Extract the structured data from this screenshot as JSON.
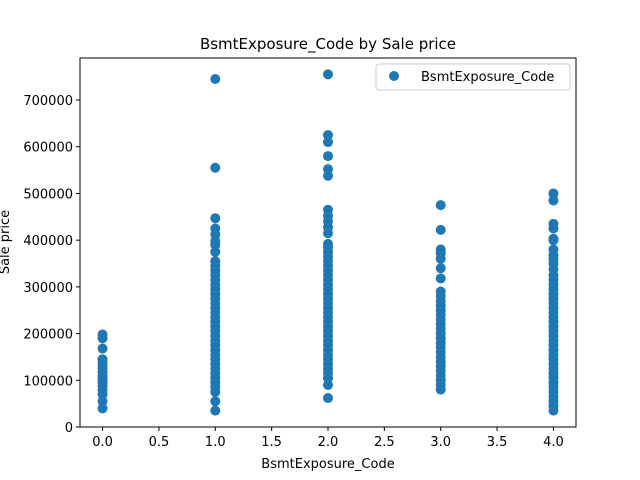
{
  "chart_data": {
    "type": "scatter",
    "title": "BsmtExposure_Code by Sale price",
    "xlabel": "BsmtExposure_Code",
    "ylabel": "Sale price",
    "xlim": [
      -0.2,
      4.2
    ],
    "ylim": [
      0,
      790000
    ],
    "x_ticks": [
      0.0,
      0.5,
      1.0,
      1.5,
      2.0,
      2.5,
      3.0,
      3.5,
      4.0
    ],
    "x_tick_labels": [
      "0.0",
      "0.5",
      "1.0",
      "1.5",
      "2.0",
      "2.5",
      "3.0",
      "3.5",
      "4.0"
    ],
    "y_ticks": [
      0,
      100000,
      200000,
      300000,
      400000,
      500000,
      600000,
      700000
    ],
    "y_tick_labels": [
      "0",
      "100000",
      "200000",
      "300000",
      "400000",
      "500000",
      "600000",
      "700000"
    ],
    "grid": false,
    "legend_position": "top-right",
    "marker_color": "#1f77b4",
    "series": [
      {
        "name": "BsmtExposure_Code",
        "points": [
          [
            0,
            40000
          ],
          [
            0,
            55000
          ],
          [
            0,
            70000
          ],
          [
            0,
            80000
          ],
          [
            0,
            88000
          ],
          [
            0,
            95000
          ],
          [
            0,
            100000
          ],
          [
            0,
            105000
          ],
          [
            0,
            110000
          ],
          [
            0,
            118000
          ],
          [
            0,
            125000
          ],
          [
            0,
            132000
          ],
          [
            0,
            140000
          ],
          [
            0,
            145000
          ],
          [
            0,
            168000
          ],
          [
            0,
            190000
          ],
          [
            0,
            198000
          ],
          [
            1,
            35000
          ],
          [
            1,
            55000
          ],
          [
            1,
            75000
          ],
          [
            1,
            85000
          ],
          [
            1,
            95000
          ],
          [
            1,
            105000
          ],
          [
            1,
            115000
          ],
          [
            1,
            125000
          ],
          [
            1,
            135000
          ],
          [
            1,
            145000
          ],
          [
            1,
            155000
          ],
          [
            1,
            165000
          ],
          [
            1,
            175000
          ],
          [
            1,
            185000
          ],
          [
            1,
            195000
          ],
          [
            1,
            205000
          ],
          [
            1,
            215000
          ],
          [
            1,
            225000
          ],
          [
            1,
            235000
          ],
          [
            1,
            245000
          ],
          [
            1,
            255000
          ],
          [
            1,
            265000
          ],
          [
            1,
            275000
          ],
          [
            1,
            285000
          ],
          [
            1,
            295000
          ],
          [
            1,
            305000
          ],
          [
            1,
            315000
          ],
          [
            1,
            325000
          ],
          [
            1,
            335000
          ],
          [
            1,
            345000
          ],
          [
            1,
            355000
          ],
          [
            1,
            375000
          ],
          [
            1,
            390000
          ],
          [
            1,
            398000
          ],
          [
            1,
            412000
          ],
          [
            1,
            425000
          ],
          [
            1,
            447000
          ],
          [
            1,
            555000
          ],
          [
            1,
            745000
          ],
          [
            2,
            62000
          ],
          [
            2,
            90000
          ],
          [
            2,
            105000
          ],
          [
            2,
            115000
          ],
          [
            2,
            125000
          ],
          [
            2,
            135000
          ],
          [
            2,
            145000
          ],
          [
            2,
            155000
          ],
          [
            2,
            165000
          ],
          [
            2,
            175000
          ],
          [
            2,
            185000
          ],
          [
            2,
            195000
          ],
          [
            2,
            205000
          ],
          [
            2,
            215000
          ],
          [
            2,
            225000
          ],
          [
            2,
            235000
          ],
          [
            2,
            245000
          ],
          [
            2,
            255000
          ],
          [
            2,
            265000
          ],
          [
            2,
            275000
          ],
          [
            2,
            285000
          ],
          [
            2,
            295000
          ],
          [
            2,
            305000
          ],
          [
            2,
            315000
          ],
          [
            2,
            325000
          ],
          [
            2,
            335000
          ],
          [
            2,
            345000
          ],
          [
            2,
            355000
          ],
          [
            2,
            365000
          ],
          [
            2,
            375000
          ],
          [
            2,
            385000
          ],
          [
            2,
            392000
          ],
          [
            2,
            415000
          ],
          [
            2,
            428000
          ],
          [
            2,
            440000
          ],
          [
            2,
            452000
          ],
          [
            2,
            465000
          ],
          [
            2,
            538000
          ],
          [
            2,
            552000
          ],
          [
            2,
            580000
          ],
          [
            2,
            610000
          ],
          [
            2,
            625000
          ],
          [
            2,
            755000
          ],
          [
            3,
            80000
          ],
          [
            3,
            90000
          ],
          [
            3,
            100000
          ],
          [
            3,
            110000
          ],
          [
            3,
            120000
          ],
          [
            3,
            130000
          ],
          [
            3,
            140000
          ],
          [
            3,
            150000
          ],
          [
            3,
            160000
          ],
          [
            3,
            170000
          ],
          [
            3,
            180000
          ],
          [
            3,
            190000
          ],
          [
            3,
            200000
          ],
          [
            3,
            210000
          ],
          [
            3,
            220000
          ],
          [
            3,
            230000
          ],
          [
            3,
            240000
          ],
          [
            3,
            250000
          ],
          [
            3,
            260000
          ],
          [
            3,
            270000
          ],
          [
            3,
            280000
          ],
          [
            3,
            290000
          ],
          [
            3,
            318000
          ],
          [
            3,
            340000
          ],
          [
            3,
            360000
          ],
          [
            3,
            372000
          ],
          [
            3,
            380000
          ],
          [
            3,
            422000
          ],
          [
            3,
            475000
          ],
          [
            4,
            35000
          ],
          [
            4,
            45000
          ],
          [
            4,
            55000
          ],
          [
            4,
            65000
          ],
          [
            4,
            75000
          ],
          [
            4,
            85000
          ],
          [
            4,
            95000
          ],
          [
            4,
            105000
          ],
          [
            4,
            115000
          ],
          [
            4,
            125000
          ],
          [
            4,
            135000
          ],
          [
            4,
            145000
          ],
          [
            4,
            155000
          ],
          [
            4,
            165000
          ],
          [
            4,
            175000
          ],
          [
            4,
            185000
          ],
          [
            4,
            195000
          ],
          [
            4,
            205000
          ],
          [
            4,
            215000
          ],
          [
            4,
            225000
          ],
          [
            4,
            235000
          ],
          [
            4,
            245000
          ],
          [
            4,
            255000
          ],
          [
            4,
            265000
          ],
          [
            4,
            275000
          ],
          [
            4,
            285000
          ],
          [
            4,
            295000
          ],
          [
            4,
            305000
          ],
          [
            4,
            315000
          ],
          [
            4,
            325000
          ],
          [
            4,
            338000
          ],
          [
            4,
            350000
          ],
          [
            4,
            360000
          ],
          [
            4,
            368000
          ],
          [
            4,
            380000
          ],
          [
            4,
            400000
          ],
          [
            4,
            403000
          ],
          [
            4,
            425000
          ],
          [
            4,
            435000
          ],
          [
            4,
            485000
          ],
          [
            4,
            500000
          ]
        ]
      }
    ]
  }
}
